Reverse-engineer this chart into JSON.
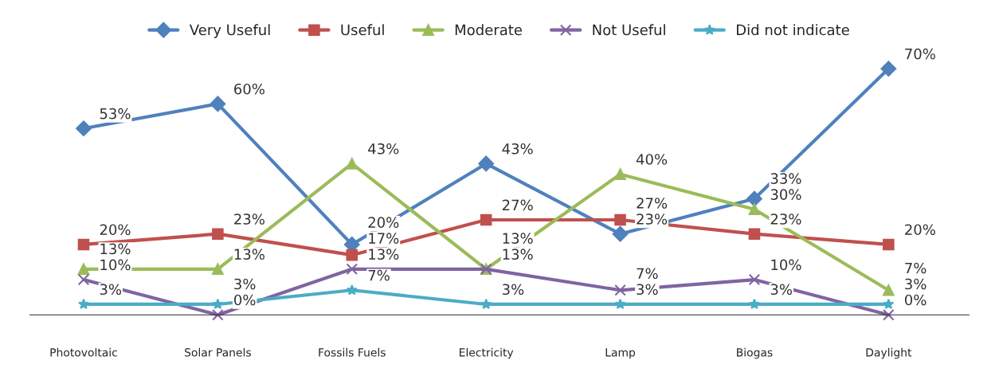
{
  "chart_data": {
    "type": "line",
    "categories": [
      "Photovoltaic",
      "Solar Panels",
      "Fossils Fuels",
      "Electricity",
      "Lamp",
      "Biogas",
      "Daylight"
    ],
    "series": [
      {
        "name": "Very Useful",
        "color": "#4f81bd",
        "marker": "diamond",
        "values": [
          53,
          60,
          20,
          43,
          23,
          33,
          70
        ],
        "value_labels": [
          "53%",
          "60%",
          "20%",
          "43%",
          "23%",
          "33%",
          "70%"
        ]
      },
      {
        "name": "Useful",
        "color": "#c0504d",
        "marker": "square",
        "values": [
          20,
          23,
          17,
          27,
          27,
          23,
          20
        ],
        "value_labels": [
          "20%",
          "23%",
          "17%",
          "27%",
          "27%",
          "23%",
          "20%"
        ]
      },
      {
        "name": "Moderate",
        "color": "#9bbb59",
        "marker": "triangle",
        "values": [
          13,
          13,
          43,
          13,
          40,
          30,
          7
        ],
        "value_labels": [
          "13%",
          "13%",
          "43%",
          "13%",
          "40%",
          "30%",
          "7%"
        ]
      },
      {
        "name": "Not Useful",
        "color": "#8064a2",
        "marker": "cross",
        "values": [
          10,
          0,
          13,
          13,
          7,
          10,
          0
        ],
        "value_labels": [
          "10%",
          "0%",
          "13%",
          "13%",
          "7%",
          "10%",
          "0%"
        ]
      },
      {
        "name": "Did not indicate",
        "color": "#4bacc6",
        "marker": "star",
        "values": [
          3,
          3,
          7,
          3,
          3,
          3,
          3
        ],
        "value_labels": [
          "3%",
          "3%",
          "7%",
          "3%",
          "3%",
          "3%",
          "3%"
        ]
      }
    ],
    "legend": "top",
    "grid": false,
    "tick_labels": "x"
  }
}
